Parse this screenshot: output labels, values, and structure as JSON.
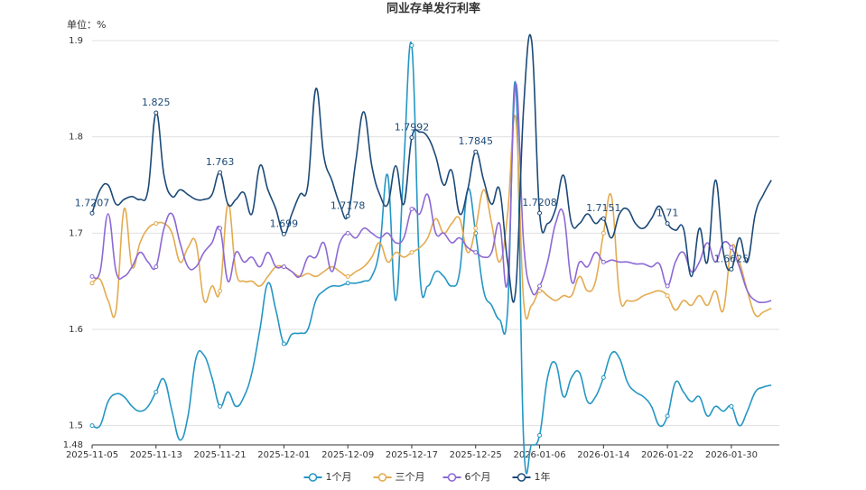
{
  "chart_data": {
    "type": "line",
    "title": "同业存单发行利率",
    "y_label": "单位：%",
    "categories": [
      "2025-11-05",
      null,
      null,
      null,
      null,
      null,
      null,
      null,
      "2025-11-13",
      null,
      null,
      null,
      null,
      null,
      null,
      null,
      "2025-11-21",
      null,
      null,
      null,
      null,
      null,
      null,
      null,
      "2025-12-01",
      null,
      null,
      null,
      null,
      null,
      null,
      null,
      "2025-12-09",
      null,
      null,
      null,
      null,
      null,
      null,
      null,
      "2025-12-17",
      null,
      null,
      null,
      null,
      null,
      null,
      null,
      "2025-12-25",
      null,
      null,
      null,
      null,
      null,
      null,
      null,
      "2026-01-06",
      null,
      null,
      null,
      null,
      null,
      null,
      null,
      "2026-01-14",
      null,
      null,
      null,
      null,
      null,
      null,
      null,
      "2026-01-22",
      null,
      null,
      null,
      null,
      null,
      null,
      null,
      "2026-01-30",
      null,
      null,
      null,
      null,
      null
    ],
    "series": [
      {
        "name": "1个月",
        "color": "#2496c4",
        "values": [
          1.5,
          1.5,
          1.525,
          1.533,
          1.53,
          1.52,
          1.515,
          1.52,
          1.535,
          1.548,
          1.515,
          1.485,
          1.51,
          1.57,
          1.573,
          1.55,
          1.52,
          1.535,
          1.52,
          1.53,
          1.555,
          1.6,
          1.648,
          1.62,
          1.585,
          1.595,
          1.596,
          1.6,
          1.63,
          1.64,
          1.645,
          1.645,
          1.648,
          1.648,
          1.65,
          1.655,
          1.685,
          1.76,
          1.63,
          1.77,
          1.895,
          1.66,
          1.645,
          1.66,
          1.655,
          1.645,
          1.66,
          1.745,
          1.7,
          1.64,
          1.625,
          1.61,
          1.62,
          1.855,
          1.485,
          1.48,
          1.49,
          1.55,
          1.565,
          1.53,
          1.55,
          1.555,
          1.525,
          1.53,
          1.55,
          1.575,
          1.57,
          1.545,
          1.535,
          1.53,
          1.52,
          1.5,
          1.51,
          1.545,
          1.535,
          1.525,
          1.53,
          1.51,
          1.52,
          1.515,
          1.52,
          1.5,
          1.515,
          1.535,
          1.54,
          1.542
        ]
      },
      {
        "name": "三个月",
        "color": "#e3ab4f",
        "values": [
          1.648,
          1.652,
          1.63,
          1.62,
          1.725,
          1.665,
          1.69,
          1.705,
          1.71,
          1.71,
          1.7,
          1.67,
          1.685,
          1.69,
          1.63,
          1.645,
          1.64,
          1.73,
          1.66,
          1.65,
          1.65,
          1.645,
          1.655,
          1.665,
          1.665,
          1.66,
          1.655,
          1.658,
          1.655,
          1.66,
          1.665,
          1.66,
          1.655,
          1.66,
          1.665,
          1.675,
          1.69,
          1.67,
          1.68,
          1.675,
          1.68,
          1.685,
          1.695,
          1.715,
          1.7,
          1.71,
          1.715,
          1.68,
          1.705,
          1.745,
          1.71,
          1.67,
          1.72,
          1.82,
          1.63,
          1.625,
          1.64,
          1.635,
          1.63,
          1.635,
          1.635,
          1.655,
          1.64,
          1.65,
          1.7,
          1.738,
          1.635,
          1.63,
          1.63,
          1.635,
          1.638,
          1.64,
          1.635,
          1.62,
          1.63,
          1.625,
          1.635,
          1.625,
          1.64,
          1.62,
          1.685,
          1.67,
          1.64,
          1.615,
          1.618,
          1.622
        ]
      },
      {
        "name": "6个月",
        "color": "#8c69d4",
        "values": [
          1.655,
          1.66,
          1.72,
          1.66,
          1.655,
          1.665,
          1.68,
          1.67,
          1.665,
          1.705,
          1.72,
          1.69,
          1.665,
          1.665,
          1.68,
          1.69,
          1.705,
          1.65,
          1.68,
          1.67,
          1.675,
          1.665,
          1.68,
          1.665,
          1.665,
          1.66,
          1.655,
          1.675,
          1.675,
          1.69,
          1.66,
          1.69,
          1.7,
          1.695,
          1.705,
          1.7,
          1.695,
          1.7,
          1.69,
          1.695,
          1.725,
          1.72,
          1.74,
          1.7,
          1.7,
          1.69,
          1.695,
          1.685,
          1.68,
          1.675,
          1.68,
          1.71,
          1.65,
          1.855,
          1.69,
          1.64,
          1.645,
          1.67,
          1.71,
          1.72,
          1.65,
          1.67,
          1.665,
          1.68,
          1.67,
          1.672,
          1.67,
          1.67,
          1.668,
          1.668,
          1.665,
          1.668,
          1.645,
          1.67,
          1.68,
          1.66,
          1.67,
          1.69,
          1.67,
          1.69,
          1.685,
          1.665,
          1.64,
          1.63,
          1.628,
          1.63
        ]
      },
      {
        "name": "1年",
        "color": "#1c4a78",
        "values": [
          1.7207,
          1.745,
          1.75,
          1.73,
          1.735,
          1.738,
          1.735,
          1.745,
          1.825,
          1.76,
          1.738,
          1.745,
          1.74,
          1.735,
          1.735,
          1.74,
          1.763,
          1.73,
          1.735,
          1.742,
          1.72,
          1.77,
          1.745,
          1.725,
          1.699,
          1.72,
          1.74,
          1.75,
          1.85,
          1.78,
          1.755,
          1.73,
          1.7178,
          1.775,
          1.826,
          1.77,
          1.74,
          1.73,
          1.77,
          1.73,
          1.7992,
          1.805,
          1.8,
          1.78,
          1.75,
          1.765,
          1.72,
          1.745,
          1.7845,
          1.755,
          1.73,
          1.745,
          1.67,
          1.64,
          1.83,
          1.9,
          1.7208,
          1.71,
          1.725,
          1.76,
          1.71,
          1.71,
          1.72,
          1.71,
          1.7151,
          1.695,
          1.72,
          1.725,
          1.71,
          1.705,
          1.715,
          1.728,
          1.71,
          1.703,
          1.705,
          1.655,
          1.705,
          1.67,
          1.755,
          1.68,
          1.6625,
          1.695,
          1.67,
          1.72,
          1.74,
          1.755
        ]
      }
    ],
    "ylim": [
      1.48,
      1.9
    ],
    "yticks": [
      1.48,
      1.5,
      1.6,
      1.7,
      1.8,
      1.9
    ],
    "grid": true
  }
}
